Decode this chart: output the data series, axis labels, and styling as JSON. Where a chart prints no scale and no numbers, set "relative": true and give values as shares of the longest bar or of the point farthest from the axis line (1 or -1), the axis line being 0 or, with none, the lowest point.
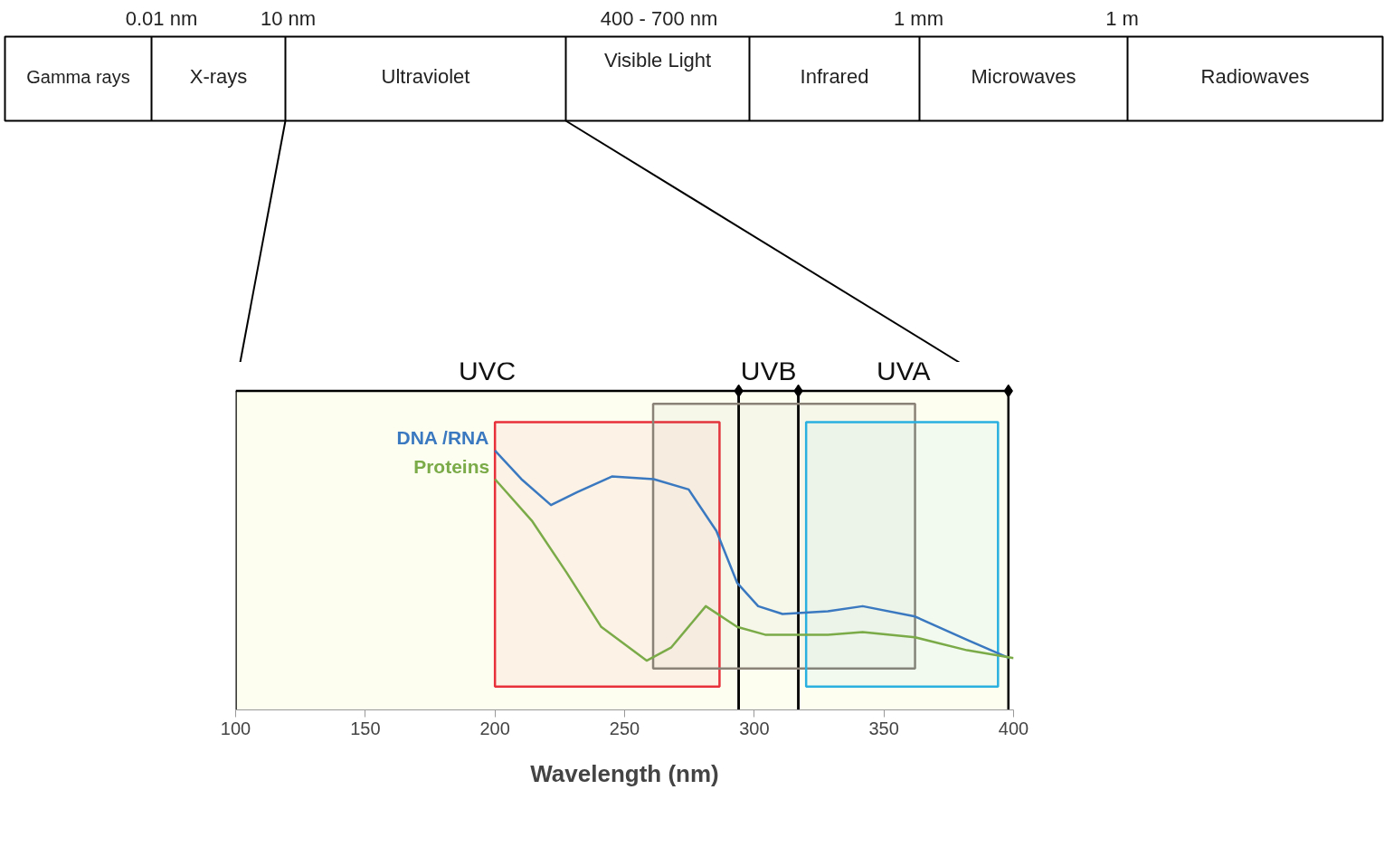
{
  "chart_data": {
    "type": "line",
    "relative": true,
    "xlabel": "Wavelength (nm)",
    "xlim": [
      100,
      400
    ],
    "xticks": [
      100,
      150,
      200,
      250,
      300,
      350,
      400
    ],
    "grid": false,
    "marker": "none",
    "line_style": "solid",
    "series": [
      {
        "name": "DNA /RNA",
        "color": "#3a78c0",
        "x": [
          200,
          210.2,
          221.6,
          231.7,
          245.1,
          261.2,
          274.7,
          285.4,
          293.4,
          301.5,
          310.9,
          328.4,
          341.8,
          362.0,
          382.1,
          398.2
        ],
        "values": [
          1.0,
          0.89,
          0.79,
          0.84,
          0.9,
          0.89,
          0.85,
          0.69,
          0.49,
          0.4,
          0.37,
          0.38,
          0.4,
          0.36,
          0.27,
          0.2
        ]
      },
      {
        "name": "Proteins",
        "color": "#7aab48",
        "x": [
          200,
          214.2,
          227.6,
          241.0,
          258.5,
          267.9,
          281.3,
          293.4,
          304.2,
          328.4,
          341.8,
          362.0,
          382.1,
          400
        ],
        "values": [
          0.89,
          0.73,
          0.53,
          0.32,
          0.19,
          0.24,
          0.4,
          0.32,
          0.29,
          0.29,
          0.3,
          0.28,
          0.23,
          0.2
        ]
      }
    ],
    "bands": [
      {
        "axis": "x",
        "from": 100,
        "to": 294,
        "label": "UVC",
        "color": "#fdfdf0"
      },
      {
        "axis": "x",
        "from": 294,
        "to": 317,
        "label": "UVB",
        "color": "#fdfdf0"
      },
      {
        "axis": "x",
        "from": 317,
        "to": 398,
        "label": "UVA",
        "color": "#fdfdf0"
      },
      {
        "axis": "x",
        "from": 200,
        "to": 286.6,
        "color": "#e8303a"
      },
      {
        "axis": "x",
        "from": 261,
        "to": 362,
        "color": "#8a8276"
      },
      {
        "axis": "x",
        "from": 320,
        "to": 394,
        "color": "#2ab0e0"
      }
    ],
    "annotations": [
      "0.01 nm",
      "10 nm",
      "400 - 700 nm",
      "1 mm",
      "1 m",
      "Gamma rays",
      "X-rays",
      "Ultraviolet",
      "Visible Light",
      "Infrared",
      "Microwaves",
      "Radiowaves"
    ]
  }
}
